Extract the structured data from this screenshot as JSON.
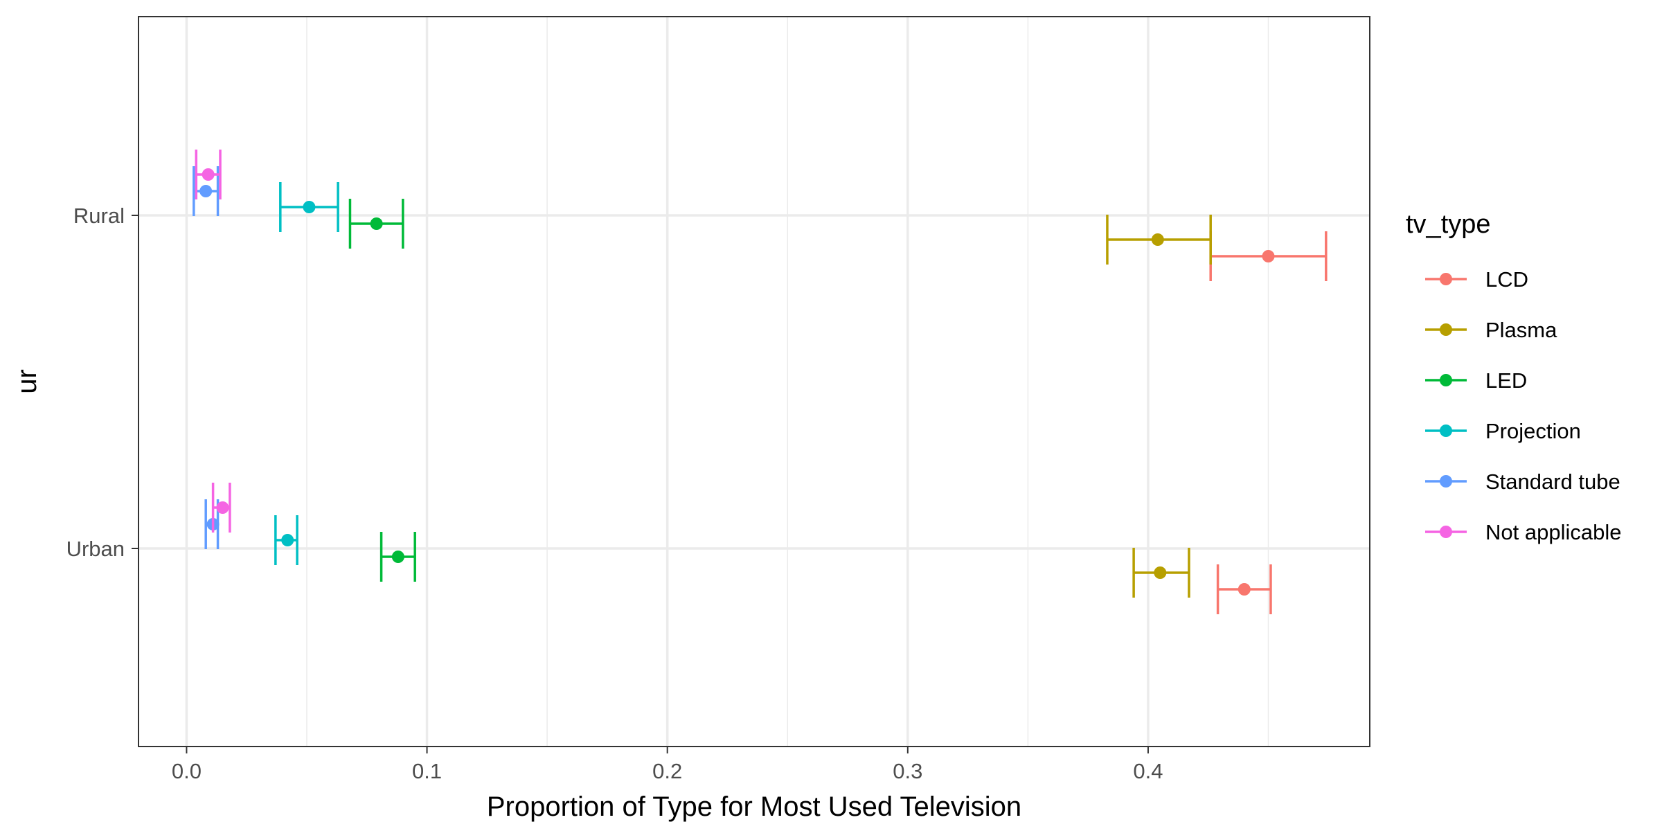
{
  "chart_data": {
    "type": "errorbar",
    "orientation": "horizontal",
    "xlabel": "Proportion of Type for Most Used Television",
    "ylabel": "ur",
    "xlim": [
      -0.02,
      0.4922
    ],
    "x_ticks": [
      0.0,
      0.1,
      0.2,
      0.3,
      0.4
    ],
    "x_tick_labels": [
      "0.0",
      "0.1",
      "0.2",
      "0.3",
      "0.4"
    ],
    "categories": [
      "Rural",
      "Urban"
    ],
    "grid": true,
    "legend": {
      "title": "tv_type",
      "position": "right",
      "entries": [
        "LCD",
        "Plasma",
        "LED",
        "Projection",
        "Standard tube",
        "Not applicable"
      ]
    },
    "series": [
      {
        "name": "LCD",
        "color": "#F8766D",
        "points": [
          {
            "category": "Rural",
            "value": 0.45,
            "low": 0.426,
            "high": 0.474
          },
          {
            "category": "Urban",
            "value": 0.44,
            "low": 0.429,
            "high": 0.451
          }
        ]
      },
      {
        "name": "Plasma",
        "color": "#B79F00",
        "points": [
          {
            "category": "Rural",
            "value": 0.404,
            "low": 0.383,
            "high": 0.426
          },
          {
            "category": "Urban",
            "value": 0.405,
            "low": 0.394,
            "high": 0.417
          }
        ]
      },
      {
        "name": "LED",
        "color": "#00BA38",
        "points": [
          {
            "category": "Rural",
            "value": 0.079,
            "low": 0.068,
            "high": 0.09
          },
          {
            "category": "Urban",
            "value": 0.088,
            "low": 0.081,
            "high": 0.095
          }
        ]
      },
      {
        "name": "Projection",
        "color": "#00BFC4",
        "points": [
          {
            "category": "Rural",
            "value": 0.051,
            "low": 0.039,
            "high": 0.063
          },
          {
            "category": "Urban",
            "value": 0.042,
            "low": 0.037,
            "high": 0.046
          }
        ]
      },
      {
        "name": "Standard tube",
        "color": "#619CFF",
        "points": [
          {
            "category": "Rural",
            "value": 0.008,
            "low": 0.003,
            "high": 0.013
          },
          {
            "category": "Urban",
            "value": 0.011,
            "low": 0.008,
            "high": 0.013
          }
        ]
      },
      {
        "name": "Not applicable",
        "color": "#F564E3",
        "points": [
          {
            "category": "Rural",
            "value": 0.009,
            "low": 0.004,
            "high": 0.014
          },
          {
            "category": "Urban",
            "value": 0.015,
            "low": 0.011,
            "high": 0.018
          }
        ]
      }
    ]
  }
}
